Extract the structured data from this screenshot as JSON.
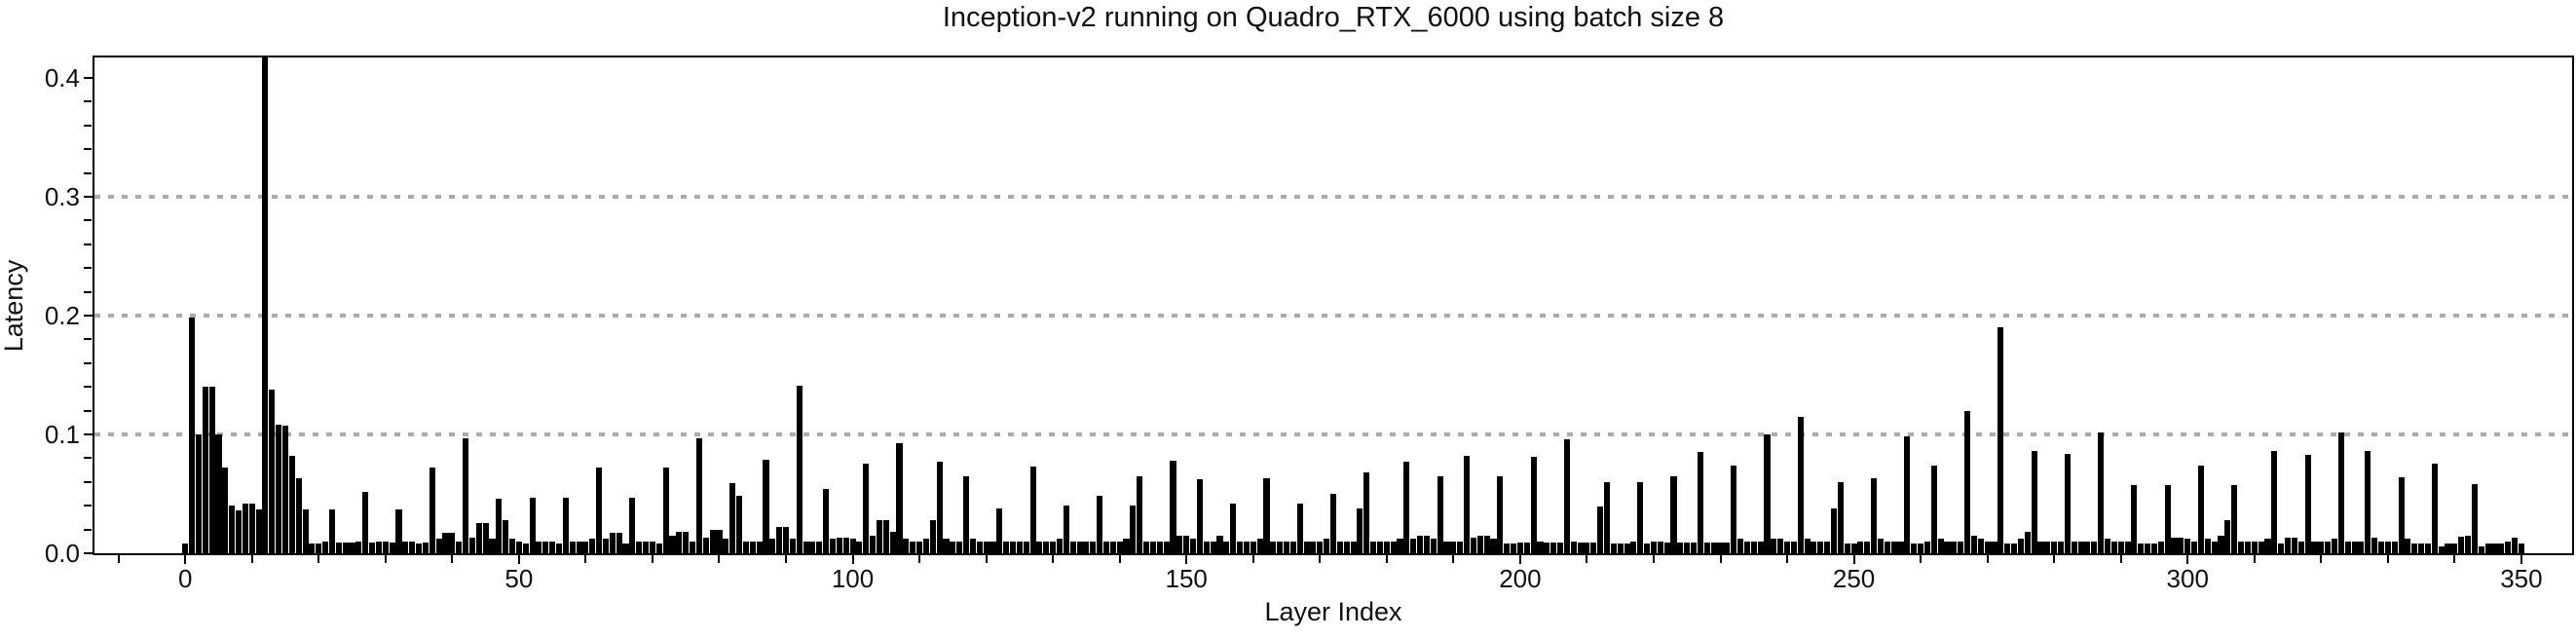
{
  "chart_data": {
    "type": "bar",
    "title": "Inception-v2 running on Quadro_RTX_6000 using batch size 8",
    "xlabel": "Layer Index",
    "ylabel": "Latency",
    "x_start_index": 0,
    "bar_color": "#000000",
    "grid_color": "#ababab",
    "grid_on": true,
    "grid_y": [
      0.1,
      0.2,
      0.3
    ],
    "xticks": [
      0,
      50,
      100,
      150,
      200,
      250,
      300,
      350
    ],
    "xtick_labels": [
      "0",
      "50",
      "100",
      "150",
      "200",
      "250",
      "300",
      "350"
    ],
    "x_minor_step": 10,
    "yticks": [
      0.0,
      0.1,
      0.2,
      0.3,
      0.4
    ],
    "ytick_labels": [
      "0.0",
      "0.1",
      "0.2",
      "0.3",
      "0.4"
    ],
    "y_minor_step": 0.02,
    "xlim": [
      -13.6,
      357.6
    ],
    "ylim": [
      0,
      0.4172
    ],
    "values": [
      0.008,
      0.198,
      0.1,
      0.14,
      0.14,
      0.1,
      0.072,
      0.04,
      0.036,
      0.042,
      0.042,
      0.037,
      0.42,
      0.138,
      0.108,
      0.107,
      0.082,
      0.063,
      0.037,
      0.008,
      0.008,
      0.01,
      0.037,
      0.009,
      0.009,
      0.009,
      0.01,
      0.052,
      0.009,
      0.01,
      0.01,
      0.009,
      0.037,
      0.01,
      0.01,
      0.008,
      0.009,
      0.072,
      0.012,
      0.017,
      0.017,
      0.01,
      0.097,
      0.013,
      0.025,
      0.025,
      0.012,
      0.046,
      0.028,
      0.012,
      0.01,
      0.008,
      0.047,
      0.01,
      0.01,
      0.01,
      0.008,
      0.047,
      0.01,
      0.01,
      0.01,
      0.012,
      0.072,
      0.012,
      0.017,
      0.017,
      0.008,
      0.047,
      0.01,
      0.01,
      0.01,
      0.008,
      0.072,
      0.015,
      0.018,
      0.018,
      0.01,
      0.097,
      0.013,
      0.02,
      0.02,
      0.012,
      0.059,
      0.048,
      0.01,
      0.01,
      0.01,
      0.079,
      0.012,
      0.022,
      0.022,
      0.012,
      0.141,
      0.01,
      0.01,
      0.01,
      0.054,
      0.012,
      0.013,
      0.013,
      0.012,
      0.01,
      0.075,
      0.015,
      0.028,
      0.028,
      0.018,
      0.093,
      0.012,
      0.01,
      0.01,
      0.012,
      0.028,
      0.077,
      0.012,
      0.01,
      0.01,
      0.065,
      0.012,
      0.01,
      0.01,
      0.01,
      0.038,
      0.01,
      0.01,
      0.01,
      0.01,
      0.073,
      0.01,
      0.01,
      0.01,
      0.012,
      0.04,
      0.01,
      0.01,
      0.01,
      0.01,
      0.048,
      0.01,
      0.01,
      0.01,
      0.012,
      0.04,
      0.065,
      0.01,
      0.01,
      0.01,
      0.01,
      0.078,
      0.015,
      0.015,
      0.012,
      0.062,
      0.01,
      0.01,
      0.015,
      0.01,
      0.042,
      0.01,
      0.01,
      0.01,
      0.012,
      0.063,
      0.01,
      0.01,
      0.01,
      0.01,
      0.042,
      0.01,
      0.01,
      0.01,
      0.012,
      0.05,
      0.01,
      0.01,
      0.01,
      0.038,
      0.068,
      0.01,
      0.01,
      0.01,
      0.01,
      0.012,
      0.077,
      0.012,
      0.015,
      0.015,
      0.012,
      0.065,
      0.01,
      0.01,
      0.01,
      0.082,
      0.013,
      0.015,
      0.015,
      0.012,
      0.065,
      0.008,
      0.008,
      0.009,
      0.009,
      0.081,
      0.01,
      0.009,
      0.009,
      0.009,
      0.096,
      0.01,
      0.009,
      0.009,
      0.009,
      0.039,
      0.06,
      0.008,
      0.008,
      0.008,
      0.01,
      0.06,
      0.008,
      0.01,
      0.01,
      0.009,
      0.065,
      0.009,
      0.009,
      0.009,
      0.085,
      0.009,
      0.009,
      0.009,
      0.009,
      0.074,
      0.012,
      0.01,
      0.01,
      0.01,
      0.1,
      0.012,
      0.012,
      0.01,
      0.01,
      0.115,
      0.012,
      0.01,
      0.01,
      0.01,
      0.038,
      0.06,
      0.008,
      0.008,
      0.01,
      0.01,
      0.063,
      0.012,
      0.01,
      0.01,
      0.01,
      0.098,
      0.008,
      0.008,
      0.01,
      0.074,
      0.012,
      0.01,
      0.01,
      0.01,
      0.12,
      0.015,
      0.012,
      0.01,
      0.01,
      0.19,
      0.008,
      0.008,
      0.012,
      0.018,
      0.086,
      0.01,
      0.01,
      0.01,
      0.01,
      0.084,
      0.01,
      0.01,
      0.01,
      0.01,
      0.102,
      0.012,
      0.01,
      0.01,
      0.01,
      0.057,
      0.008,
      0.008,
      0.008,
      0.01,
      0.057,
      0.013,
      0.013,
      0.012,
      0.01,
      0.074,
      0.012,
      0.01,
      0.015,
      0.028,
      0.057,
      0.01,
      0.01,
      0.01,
      0.01,
      0.012,
      0.086,
      0.008,
      0.013,
      0.013,
      0.01,
      0.083,
      0.01,
      0.01,
      0.01,
      0.012,
      0.102,
      0.01,
      0.01,
      0.01,
      0.086,
      0.013,
      0.01,
      0.01,
      0.01,
      0.064,
      0.012,
      0.008,
      0.008,
      0.008,
      0.075,
      0.006,
      0.008,
      0.008,
      0.014,
      0.015,
      0.058,
      0.006,
      0.008,
      0.008,
      0.008,
      0.01,
      0.013,
      0.008
    ]
  }
}
